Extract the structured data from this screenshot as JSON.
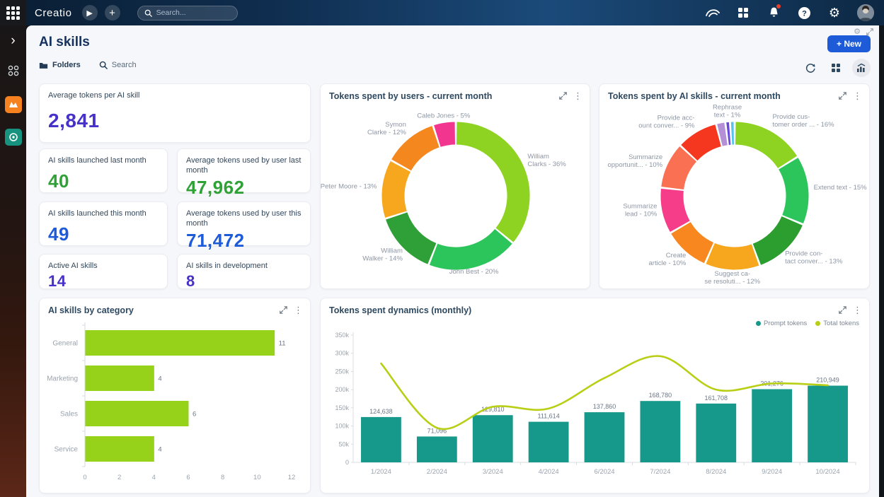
{
  "topbar": {
    "brand": "Creatio",
    "search_placeholder": "Search..."
  },
  "header": {
    "title": "AI skills",
    "new_button": "+ New"
  },
  "toolbar": {
    "folders": "Folders",
    "search": "Search"
  },
  "kpis": [
    {
      "label": "Average tokens per AI skill",
      "value": "2,841",
      "color": "#4632c8"
    },
    {
      "label": "AI skills launched last month",
      "value": "40",
      "color": "#2fa136"
    },
    {
      "label": "Average tokens used by user last month",
      "value": "47,962",
      "color": "#2fa136"
    },
    {
      "label": "AI skills launched this month",
      "value": "49",
      "color": "#1d5bd8"
    },
    {
      "label": "Average tokens used by user this month",
      "value": "71,472",
      "color": "#1d5bd8"
    },
    {
      "label": "Active AI skills",
      "value": "14",
      "color": "#4632c8"
    },
    {
      "label": "AI skills in development",
      "value": "8",
      "color": "#4632c8"
    }
  ],
  "chart_data": [
    {
      "type": "pie",
      "donut": true,
      "title": "Tokens spent by users - current month",
      "segments": [
        {
          "label_lines": [
            "William",
            "Clarks - 36%"
          ],
          "value": 36,
          "color": "#8ed321"
        },
        {
          "label_lines": [
            "John Best - 20%"
          ],
          "value": 20,
          "color": "#2cc55b"
        },
        {
          "label_lines": [
            "William",
            "Walker - 14%"
          ],
          "value": 14,
          "color": "#2f9f38"
        },
        {
          "label_lines": [
            "Peter Moore - 13%"
          ],
          "value": 13,
          "color": "#f6a71e"
        },
        {
          "label_lines": [
            "Symon",
            "Clarke - 12%"
          ],
          "value": 12,
          "color": "#f5871f"
        },
        {
          "label_lines": [
            "Caleb Jones - 5%"
          ],
          "value": 5,
          "color": "#f2368f"
        }
      ]
    },
    {
      "type": "pie",
      "donut": true,
      "title": "Tokens spent by AI skills - current month",
      "segments": [
        {
          "label_lines": [
            "Provide cus-",
            "tomer order ... - 16%"
          ],
          "value": 16,
          "color": "#8ed321"
        },
        {
          "label_lines": [
            "Extend text - 15%"
          ],
          "value": 15,
          "color": "#2cc55b"
        },
        {
          "label_lines": [
            "Provide con-",
            "tact conver... - 13%"
          ],
          "value": 13,
          "color": "#2b9e2f"
        },
        {
          "label_lines": [
            "Suggest ca-",
            "se resoluti... - 12%"
          ],
          "value": 12,
          "color": "#f7a71e"
        },
        {
          "label_lines": [
            "Create",
            "article - 10%"
          ],
          "value": 10,
          "color": "#f7871e"
        },
        {
          "label_lines": [
            "Summarize",
            "lead - 10%"
          ],
          "value": 10,
          "color": "#f63d8a"
        },
        {
          "label_lines": [
            "Summarize",
            "opportunit... - 10%"
          ],
          "value": 10,
          "color": "#fa7053"
        },
        {
          "label_lines": [
            "Provide acc-",
            "ount conver... - 9%"
          ],
          "value": 9,
          "color": "#f5371f"
        },
        {
          "label_lines": [],
          "value": 2,
          "color": "#b491d6"
        },
        {
          "label_lines": [
            "Rephrase",
            "text - 1%"
          ],
          "value": 1,
          "color": "#6a48e0"
        },
        {
          "label_lines": [],
          "value": 1,
          "color": "#56c5ee"
        }
      ]
    },
    {
      "type": "bar",
      "orientation": "horizontal",
      "title": "AI skills by category",
      "categories": [
        "General",
        "Marketing",
        "Sales",
        "Service"
      ],
      "values": [
        11,
        4,
        6,
        4
      ],
      "color": "#96d219",
      "xticks": [
        0,
        2,
        4,
        6,
        8,
        10,
        12
      ],
      "xlim": [
        0,
        12
      ]
    },
    {
      "type": "combo",
      "title": "Tokens spent dynamics (monthly)",
      "categories": [
        "1/2024",
        "2/2024",
        "3/2024",
        "4/2024",
        "6/2024",
        "7/2024",
        "8/2024",
        "9/2024",
        "10/2024"
      ],
      "yticks": [
        "0",
        "50k",
        "100k",
        "150k",
        "200k",
        "250k",
        "300k",
        "350k"
      ],
      "ylim": [
        0,
        350000
      ],
      "legend_position": "top-right",
      "series": [
        {
          "name": "Prompt tokens",
          "type": "bar",
          "color": "#16988a",
          "values": [
            124638,
            71096,
            129810,
            111614,
            137860,
            168780,
            161708,
            201276,
            210949
          ],
          "value_labels": [
            "124,638",
            "71,096",
            "129,810",
            "111,614",
            "137,860",
            "168,780",
            "161,708",
            "201,276",
            "210,949"
          ]
        },
        {
          "name": "Total tokens",
          "type": "line",
          "color": "#b8cf16",
          "values": [
            272000,
            95000,
            153000,
            148000,
            232000,
            292000,
            200000,
            217000,
            212000
          ]
        }
      ]
    }
  ]
}
